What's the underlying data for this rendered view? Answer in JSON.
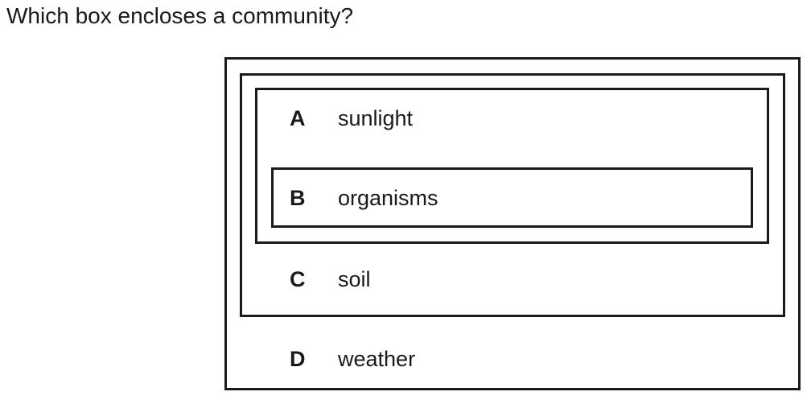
{
  "question": "Which box encloses a community?",
  "options": [
    {
      "letter": "A",
      "term": "sunlight"
    },
    {
      "letter": "B",
      "term": "organisms"
    },
    {
      "letter": "C",
      "term": "soil"
    },
    {
      "letter": "D",
      "term": "weather"
    }
  ]
}
